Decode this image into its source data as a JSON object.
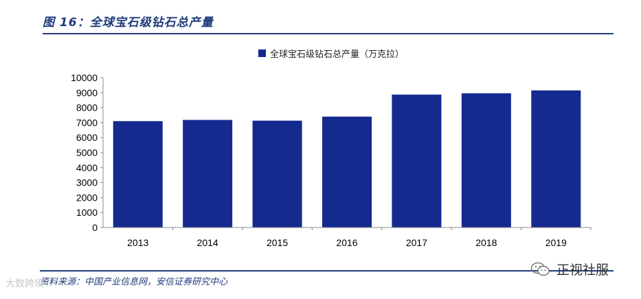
{
  "figure": {
    "title": "图 16：全球宝石级钻石总产量",
    "source": "资料来源：中国产业信息网，安信证券研究中心"
  },
  "watermarks": {
    "left": "大数跨境",
    "right": "正视社服",
    "right_icon": "wechat-icon"
  },
  "colors": {
    "bar": "#142a8f",
    "accent": "#1f3b7a",
    "axis": "#888888"
  },
  "chart_data": {
    "type": "bar",
    "categories": [
      "2013",
      "2014",
      "2015",
      "2016",
      "2017",
      "2018",
      "2019"
    ],
    "series": [
      {
        "name": "全球宝石级钻石总产量（万克拉）",
        "values": [
          7100,
          7180,
          7130,
          7400,
          8870,
          8960,
          9150
        ]
      }
    ],
    "ylim": [
      0,
      10000
    ],
    "yticks": [
      0,
      1000,
      2000,
      3000,
      4000,
      5000,
      6000,
      7000,
      8000,
      9000,
      10000
    ],
    "grid": false,
    "legend": "top-center"
  }
}
